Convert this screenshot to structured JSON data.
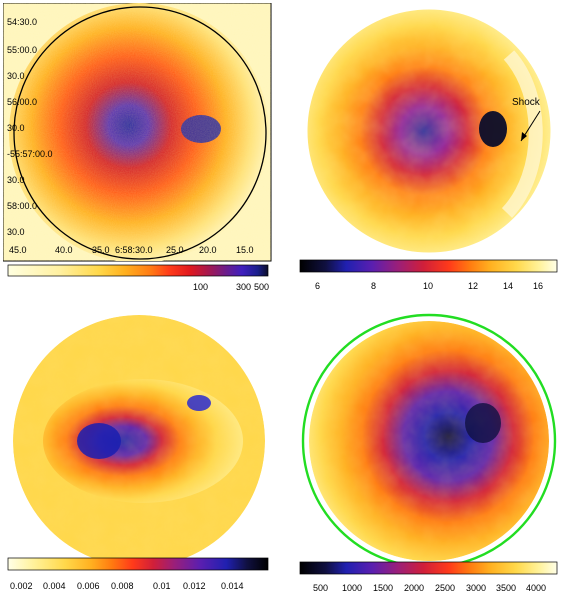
{
  "panels": [
    {
      "id": "p1",
      "title": "",
      "yticks": [
        "54:30.0",
        "55:00.0",
        "30.0",
        "56:00.0",
        "30.0",
        "-55:57:00.0",
        "30.0",
        "58:00.0",
        "30.0"
      ],
      "xticks": [
        "45.0",
        "40.0",
        "35.0",
        "6:58:30.0",
        "25.0",
        "20.0",
        "15.0"
      ],
      "colorbar": {
        "ticks": [
          "100",
          "300",
          "500"
        ],
        "colors": [
          "#ffffe0",
          "#fff0a0",
          "#ffd84a",
          "#ffb01e",
          "#ff7a14",
          "#ff3c1a",
          "#e0181e",
          "#a6184e",
          "#6a1d8c",
          "#3f1fbe",
          "#1a1f8c",
          "#0b0d2a"
        ]
      }
    },
    {
      "id": "p2",
      "annotation": "Shock",
      "colorbar": {
        "ticks": [
          "6",
          "8",
          "10",
          "12",
          "14",
          "16"
        ],
        "colors": [
          "#000000",
          "#101040",
          "#2020b0",
          "#5a1fb0",
          "#9a1f7a",
          "#d01f3a",
          "#ff3a1a",
          "#ff7a10",
          "#ffb020",
          "#ffd84a",
          "#fff29a",
          "#ffffe8"
        ]
      }
    },
    {
      "id": "p3",
      "colorbar": {
        "ticks": [
          "0.002",
          "0.004",
          "0.006",
          "0.008",
          "0.01",
          "0.012",
          "0.014"
        ],
        "colors": [
          "#ffffe8",
          "#fff29a",
          "#ffd84a",
          "#ffb020",
          "#ff7a10",
          "#ff3a1a",
          "#d01f3a",
          "#9a1f7a",
          "#5a1fb0",
          "#2020b0",
          "#101040",
          "#000000"
        ]
      }
    },
    {
      "id": "p4",
      "colorbar": {
        "ticks": [
          "500",
          "1000",
          "1500",
          "2000",
          "2500",
          "3000",
          "3500",
          "4000"
        ],
        "colors": [
          "#000000",
          "#101040",
          "#2020b0",
          "#5a1fb0",
          "#9a1f7a",
          "#d01f3a",
          "#ff3a1a",
          "#ff7a10",
          "#ffb020",
          "#ffd84a",
          "#fff29a",
          "#ffffe8"
        ]
      }
    }
  ]
}
